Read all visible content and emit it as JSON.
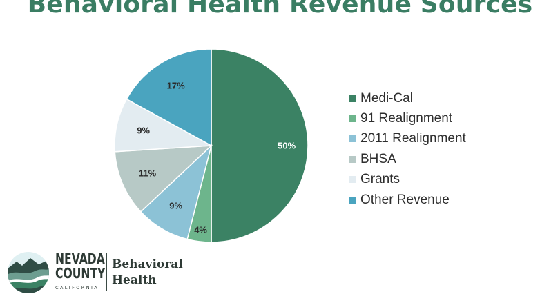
{
  "chart_data": {
    "type": "pie",
    "title": "Behavioral Health Revenue Sources",
    "slices": [
      {
        "label": "Medi-Cal",
        "value": 50,
        "display": "50%",
        "color": "#3b8264"
      },
      {
        "label": "91 Realignment",
        "value": 4,
        "display": "4%",
        "color": "#6db58c"
      },
      {
        "label": "2011 Realignment",
        "value": 9,
        "display": "9%",
        "color": "#8cc2d6"
      },
      {
        "label": "BHSA",
        "value": 11,
        "display": "11%",
        "color": "#b7c9c6"
      },
      {
        "label": "Grants",
        "value": 9,
        "display": "9%",
        "color": "#e3ecf1"
      },
      {
        "label": "Other Revenue",
        "value": 17,
        "display": "17%",
        "color": "#4aa4bf"
      }
    ],
    "legend_position": "right"
  },
  "logo": {
    "county_line1": "NEVADA",
    "county_line2": "COUNTY",
    "state": "CALIFORNIA",
    "dept_line1": "Behavioral",
    "dept_line2": "Health"
  }
}
